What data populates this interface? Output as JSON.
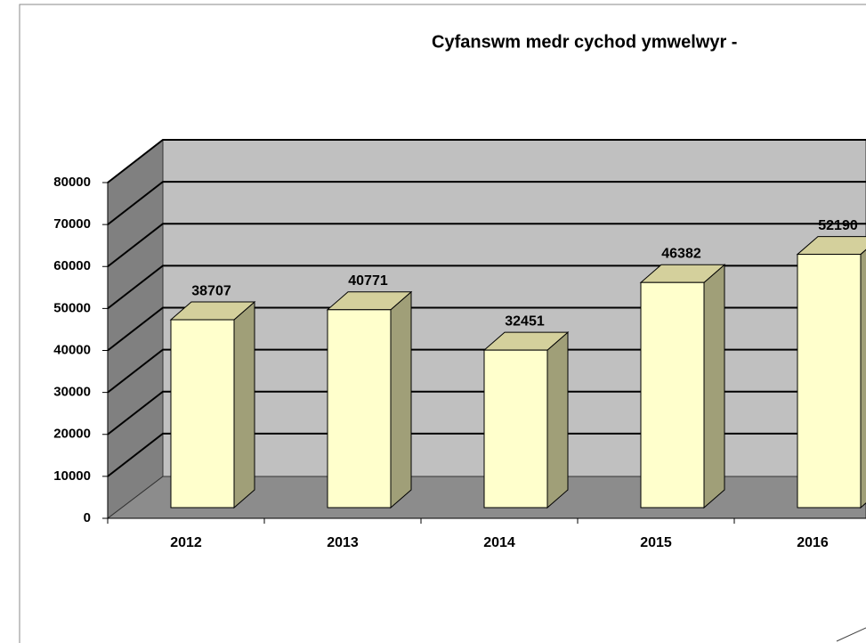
{
  "chart_data": {
    "type": "bar3d",
    "title": "Cyfanswm medr cychod ymwelwyr  -",
    "categories": [
      "2012",
      "2013",
      "2014",
      "2015",
      "2016"
    ],
    "values": [
      38707,
      40771,
      32451,
      46382,
      52190
    ],
    "color": "#ffffcc",
    "ylim": [
      0,
      80000
    ],
    "yticks": [
      0,
      10000,
      20000,
      30000,
      40000,
      50000,
      60000,
      70000,
      80000
    ],
    "grid": true
  }
}
